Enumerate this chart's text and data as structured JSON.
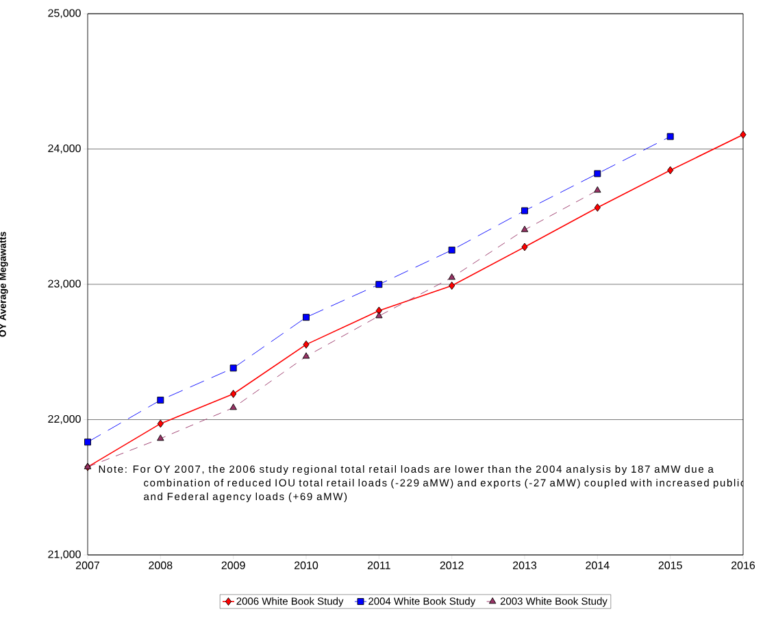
{
  "chart_data": {
    "type": "line",
    "ylabel": "OY Average Megawatts",
    "x": [
      2007,
      2008,
      2009,
      2010,
      2011,
      2012,
      2013,
      2014,
      2015,
      2016
    ],
    "series": [
      {
        "name": "2006 White Book Study",
        "color": "#ff0000",
        "marker": "diamond",
        "line_style": "solid",
        "values": [
          21650,
          21970,
          22190,
          22555,
          22805,
          22990,
          23276,
          23567,
          23843,
          24106
        ]
      },
      {
        "name": "2004 White Book Study",
        "color": "#0000ff",
        "marker": "square",
        "line_style": "dashed",
        "values": [
          21834,
          22144,
          22381,
          22756,
          22999,
          23253,
          23544,
          23818,
          24092,
          null
        ]
      },
      {
        "name": "2003 White Book Study",
        "color": "#993366",
        "marker": "triangle",
        "line_style": "dashed",
        "values": [
          21650,
          21860,
          22088,
          22467,
          22766,
          23050,
          23403,
          23694,
          null,
          null
        ]
      }
    ],
    "xlim": [
      2007,
      2016
    ],
    "xticks": [
      2007,
      2008,
      2009,
      2010,
      2011,
      2012,
      2013,
      2014,
      2015,
      2016
    ],
    "ylim": [
      21000,
      25000
    ],
    "yticks": [
      {
        "value": 21000,
        "label": "21,000"
      },
      {
        "value": 22000,
        "label": "22,000"
      },
      {
        "value": 23000,
        "label": "23,000"
      },
      {
        "value": 24000,
        "label": "24,000"
      },
      {
        "value": 25000,
        "label": "25,000"
      }
    ],
    "grid": "y",
    "legend": "bottom",
    "annotations": [
      "Note:  For OY 2007, the 2006 study regional total retail loads are lower than the 2004 analysis by 187 aMW due a combination of reduced IOU total retail loads (-229 aMW) and exports (-27 aMW) coupled with increased public and Federal agency loads (+69 aMW)"
    ]
  }
}
